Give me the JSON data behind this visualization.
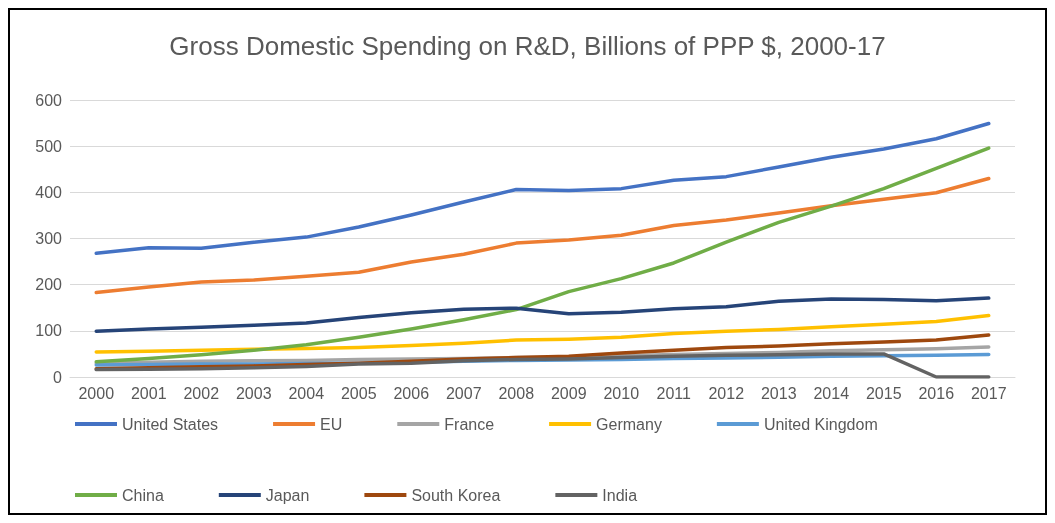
{
  "chart_data": {
    "type": "line",
    "title": "Gross Domestic Spending on R&D, Billions of PPP $, 2000-17",
    "categories": [
      "2000",
      "2001",
      "2002",
      "2003",
      "2004",
      "2005",
      "2006",
      "2007",
      "2008",
      "2009",
      "2010",
      "2011",
      "2012",
      "2013",
      "2014",
      "2015",
      "2016",
      "2017"
    ],
    "ylim": [
      0,
      600
    ],
    "yticks": [
      0,
      100,
      200,
      300,
      400,
      500,
      600
    ],
    "grid": "y",
    "legend": "bottom",
    "marker": "none",
    "line_style": "solid",
    "series": [
      {
        "name": "United States",
        "color": "#4472c4",
        "values": [
          268,
          280,
          279,
          292,
          303,
          325,
          351,
          379,
          406,
          404,
          408,
          426,
          434,
          455,
          476,
          494,
          516,
          549
        ]
      },
      {
        "name": "EU",
        "color": "#ed7d31",
        "values": [
          183,
          195,
          206,
          210,
          218,
          227,
          249,
          266,
          290,
          297,
          307,
          328,
          340,
          355,
          371,
          385,
          399,
          430
        ]
      },
      {
        "name": "France",
        "color": "#a5a5a5",
        "values": [
          30,
          32,
          34,
          35,
          36,
          38,
          39,
          40,
          42,
          43,
          46,
          49,
          51,
          53,
          57,
          59,
          61,
          65
        ]
      },
      {
        "name": "Germany",
        "color": "#ffc000",
        "values": [
          54,
          56,
          58,
          60,
          62,
          64,
          68,
          73,
          80,
          82,
          86,
          94,
          99,
          103,
          109,
          114,
          120,
          133
        ]
      },
      {
        "name": "United Kingdom",
        "color": "#5b9bd5",
        "values": [
          26,
          27,
          28,
          28,
          29,
          30,
          32,
          34,
          36,
          37,
          38,
          40,
          41,
          43,
          45,
          46,
          47,
          49
        ]
      },
      {
        "name": "China",
        "color": "#70ad47",
        "values": [
          33,
          40,
          48,
          58,
          70,
          86,
          104,
          124,
          146,
          185,
          213,
          247,
          292,
          335,
          370,
          408,
          452,
          496
        ]
      },
      {
        "name": "Japan",
        "color": "#264478",
        "values": [
          99,
          104,
          108,
          112,
          117,
          129,
          139,
          147,
          149,
          137,
          140,
          148,
          152,
          164,
          169,
          168,
          165,
          171
        ]
      },
      {
        "name": "South Korea",
        "color": "#9e480e",
        "values": [
          18,
          20,
          22,
          24,
          27,
          30,
          34,
          39,
          42,
          45,
          52,
          58,
          64,
          67,
          72,
          76,
          80,
          91
        ]
      },
      {
        "name": "India",
        "color": "#636363",
        "values": [
          16,
          17,
          18,
          20,
          23,
          28,
          30,
          35,
          38,
          39,
          42,
          45,
          47,
          48,
          50,
          50,
          0,
          0
        ]
      }
    ]
  }
}
